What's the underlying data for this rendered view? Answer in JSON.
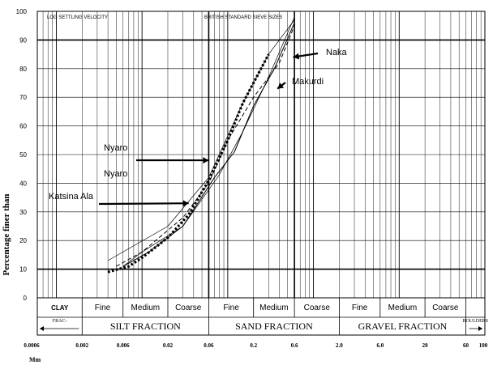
{
  "chart_data": {
    "type": "line",
    "ylabel": "Percentage finer than",
    "xunit": "Mm",
    "xscale": "log",
    "xlim": [
      0.0006,
      100
    ],
    "ylim": [
      0,
      100
    ],
    "grid": true,
    "y_ticks": [
      0,
      10,
      20,
      30,
      40,
      50,
      60,
      70,
      80,
      90,
      100
    ],
    "y_tick_labels": [
      "0",
      "10",
      "20",
      "30",
      "40",
      "50",
      "60",
      "70",
      "80",
      "90",
      "100"
    ],
    "x_ticks": [
      0.0006,
      0.002,
      0.006,
      0.02,
      0.06,
      0.2,
      0.6,
      2.0,
      6.0,
      20,
      60,
      100
    ],
    "x_tick_labels": [
      "0.0006",
      "0.002",
      "0.006",
      "0.02",
      "0.06",
      "0.2",
      "0.6",
      "2.0",
      "6.0",
      "20",
      "60",
      "100"
    ],
    "top_labels": {
      "left": "LOG SETTLING VELOCITY",
      "right": "BRITISH STANDARD SIEVE SIZES"
    },
    "series": [
      {
        "name": "Naka",
        "style": "thin",
        "color": "#000000",
        "x": [
          0.004,
          0.02,
          0.06,
          0.15,
          0.3,
          0.6
        ],
        "y": [
          13,
          25,
          42,
          68,
          85,
          97
        ]
      },
      {
        "name": "Makurdi",
        "style": "dash",
        "color": "#000000",
        "x": [
          0.005,
          0.01,
          0.03,
          0.06,
          0.1,
          0.2,
          0.4,
          0.6
        ],
        "y": [
          11,
          16,
          28,
          40,
          55,
          70,
          82,
          95
        ]
      },
      {
        "name": "Nyaro",
        "style": "medium",
        "color": "#000000",
        "x": [
          0.006,
          0.012,
          0.03,
          0.07,
          0.12,
          0.2,
          0.35,
          0.6
        ],
        "y": [
          11,
          16,
          25,
          42,
          51,
          67,
          80,
          96
        ]
      },
      {
        "name": "Nyaro",
        "style": "thin",
        "color": "#000000",
        "x": [
          0.006,
          0.01,
          0.03,
          0.08,
          0.15,
          0.3,
          0.6
        ],
        "y": [
          11,
          16,
          25,
          43,
          58,
          77,
          98
        ]
      },
      {
        "name": "Katsina Ala",
        "style": "dotted-bold",
        "color": "#000000",
        "x": [
          0.004,
          0.007,
          0.01,
          0.02,
          0.035,
          0.06,
          0.1,
          0.15,
          0.3
        ],
        "y": [
          9,
          11,
          14,
          21,
          29,
          41,
          55,
          68,
          85
        ]
      }
    ],
    "annotations": [
      {
        "text": "Naka",
        "series": "Naka",
        "at_x": 0.58,
        "at_y": 84
      },
      {
        "text": "Makurdi",
        "series": "Makurdi",
        "at_x": 0.38,
        "at_y": 73
      },
      {
        "text": "Nyaro",
        "series": "Nyaro",
        "at_x": 0.06,
        "at_y": 48
      },
      {
        "text": "Nyaro",
        "series": "Nyaro",
        "at_x": 0.06,
        "at_y": 48
      },
      {
        "text": "Katsina Ala",
        "series": "Katsina Ala",
        "at_x": 0.035,
        "at_y": 33
      }
    ],
    "fraction_table": {
      "subdivisions": [
        {
          "label": "CLAY",
          "from": 0.0006,
          "to": 0.002
        },
        {
          "label": "Fine",
          "from": 0.002,
          "to": 0.006
        },
        {
          "label": "Medium",
          "from": 0.006,
          "to": 0.02
        },
        {
          "label": "Coarse",
          "from": 0.02,
          "to": 0.06
        },
        {
          "label": "Fine",
          "from": 0.06,
          "to": 0.2
        },
        {
          "label": "Medium",
          "from": 0.2,
          "to": 0.6
        },
        {
          "label": "Coarse",
          "from": 0.6,
          "to": 2.0
        },
        {
          "label": "Fine",
          "from": 2.0,
          "to": 6.0
        },
        {
          "label": "Medium",
          "from": 6.0,
          "to": 20
        },
        {
          "label": "Coarse",
          "from": 20,
          "to": 60
        },
        {
          "label": "",
          "from": 60,
          "to": 100
        }
      ],
      "fractions": [
        {
          "label": "FRAC-",
          "from": 0.0006,
          "to": 0.002
        },
        {
          "label": "SILT FRACTION",
          "from": 0.002,
          "to": 0.06
        },
        {
          "label": "SAND FRACTION",
          "from": 0.06,
          "to": 2.0
        },
        {
          "label": "GRAVEL FRACTION",
          "from": 2.0,
          "to": 60
        },
        {
          "label": "BOULDERS",
          "from": 60,
          "to": 100
        }
      ]
    }
  }
}
